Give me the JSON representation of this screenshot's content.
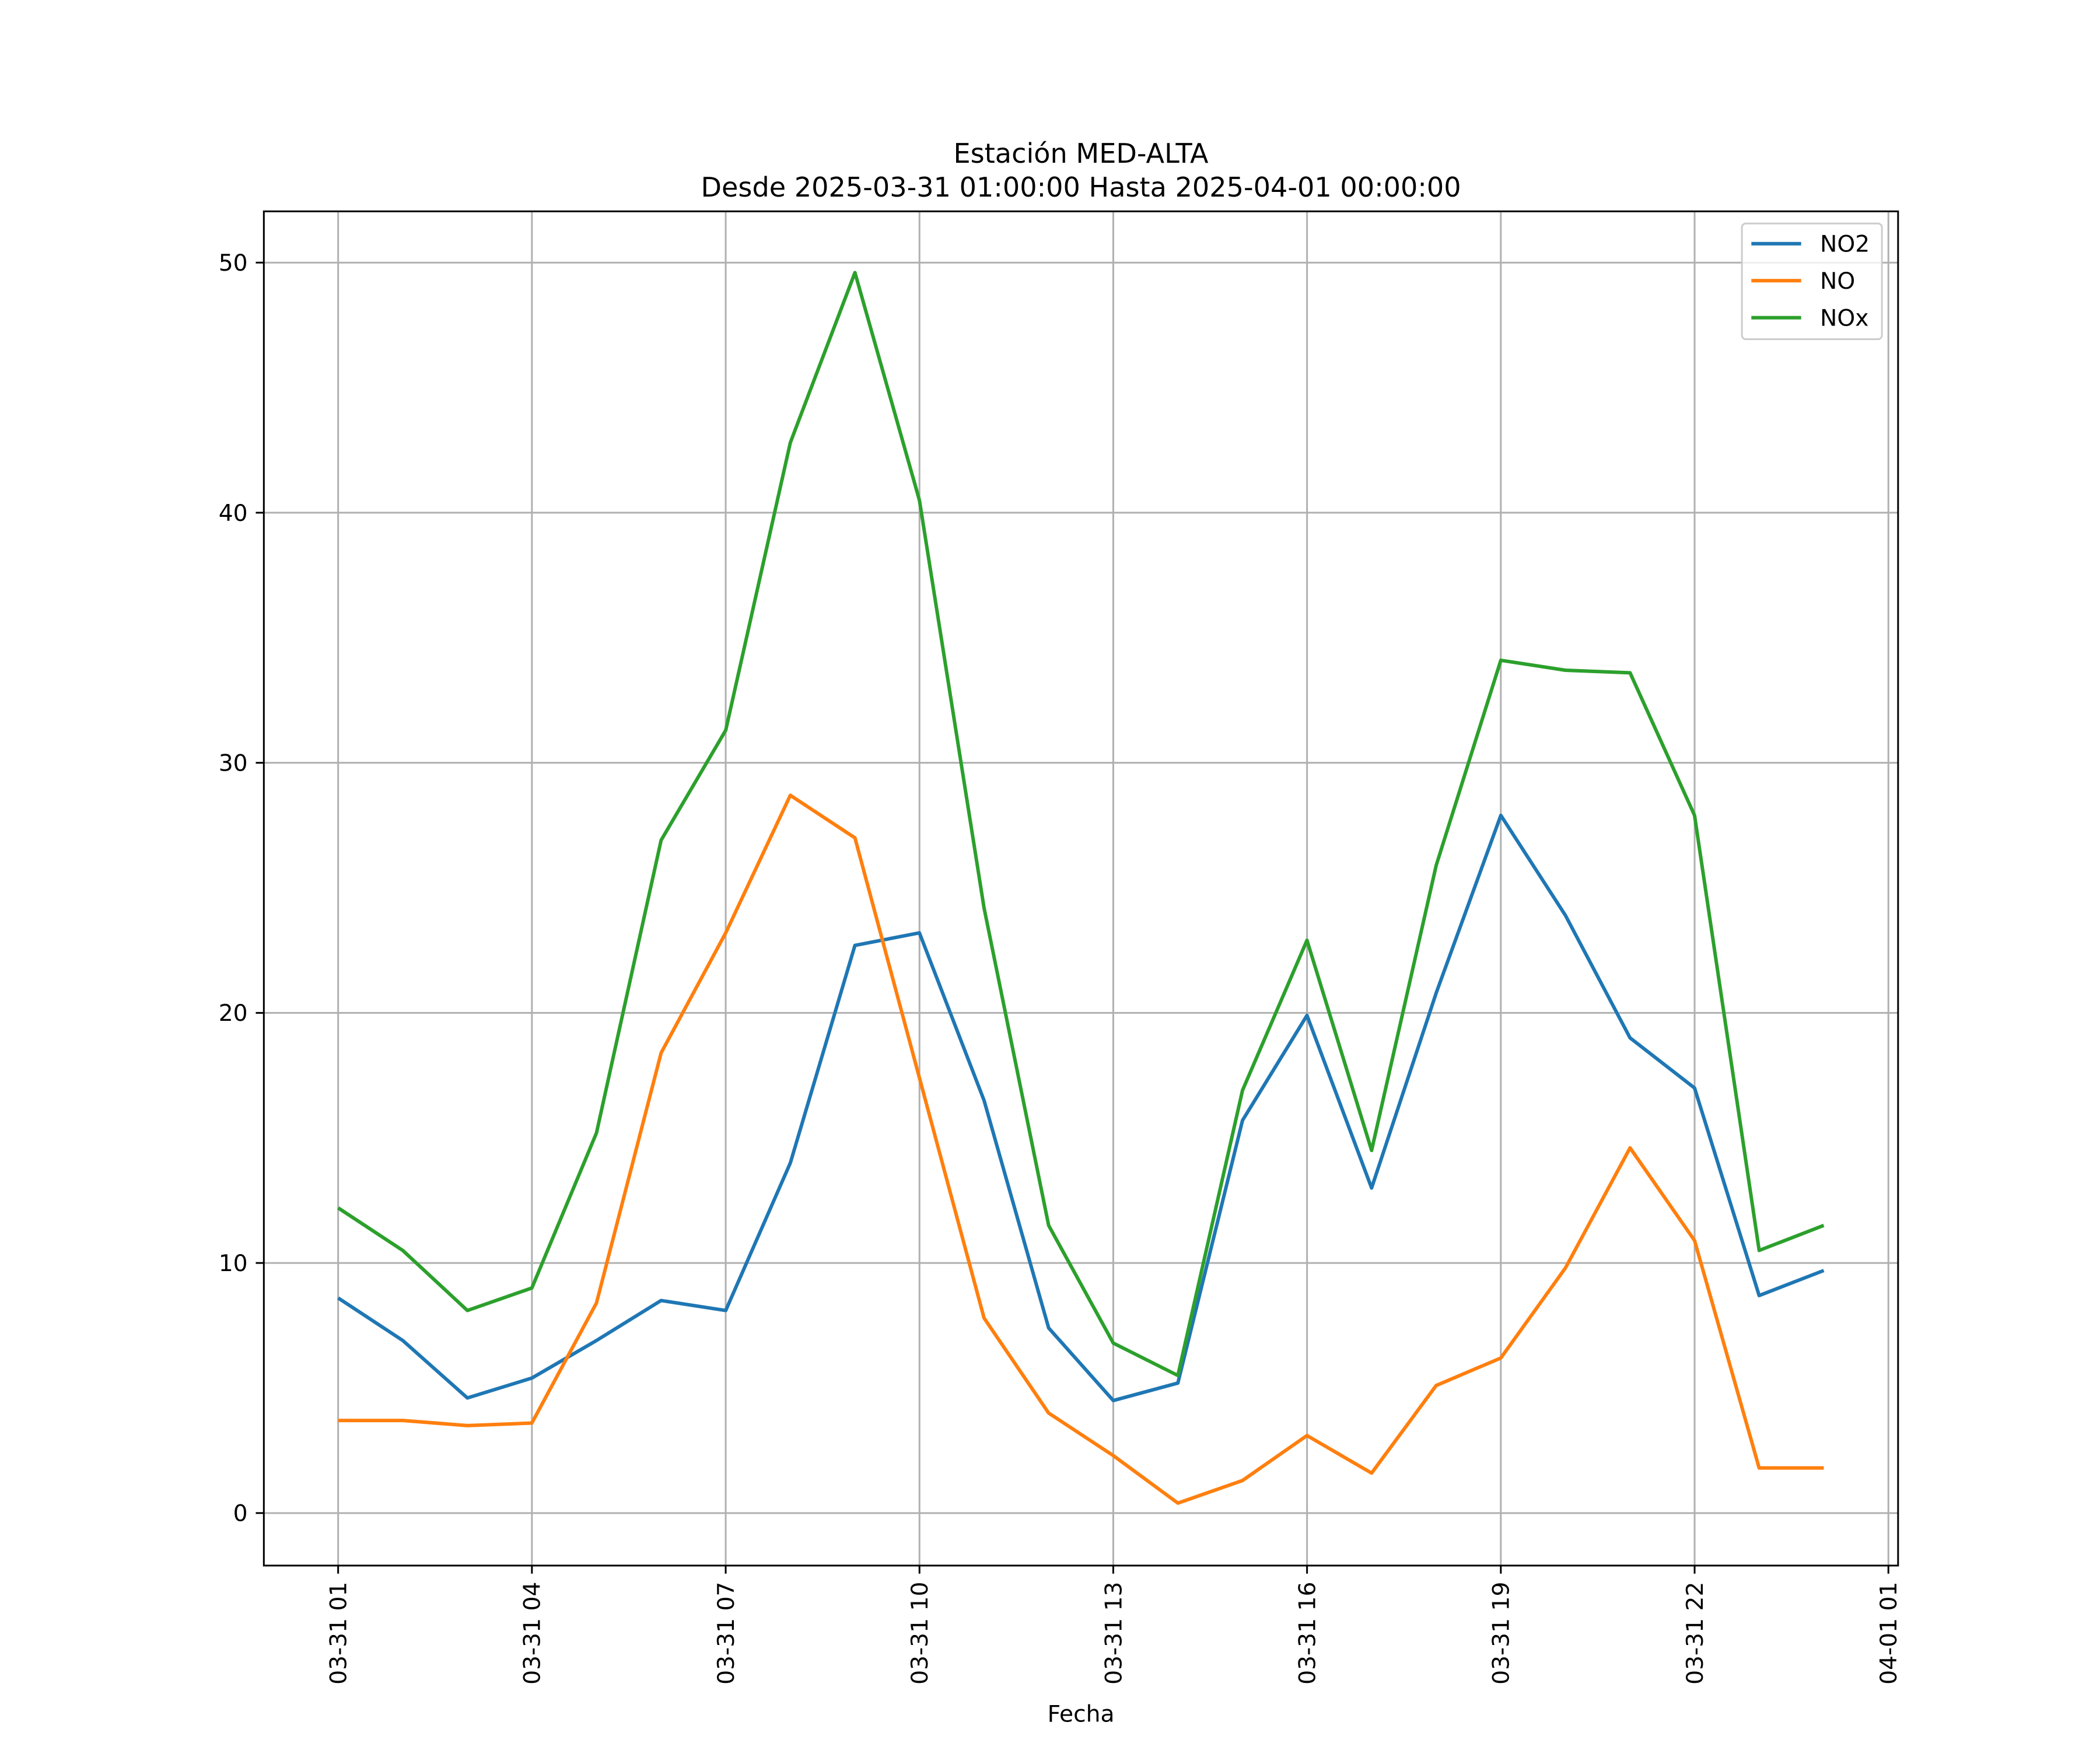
{
  "chart_data": {
    "type": "line",
    "title": [
      "Estación MED-ALTA",
      "Desde 2025-03-31 01:00:00 Hasta 2025-04-01 00:00:00"
    ],
    "xlabel": "Fecha",
    "x": [
      "03-31 01",
      "03-31 02",
      "03-31 03",
      "03-31 04",
      "03-31 05",
      "03-31 06",
      "03-31 07",
      "03-31 08",
      "03-31 09",
      "03-31 10",
      "03-31 11",
      "03-31 12",
      "03-31 13",
      "03-31 14",
      "03-31 15",
      "03-31 16",
      "03-31 17",
      "03-31 18",
      "03-31 19",
      "03-31 20",
      "03-31 21",
      "03-31 22",
      "03-31 23",
      "04-01 00"
    ],
    "xticks": [
      "03-31 01",
      "03-31 04",
      "03-31 07",
      "03-31 10",
      "03-31 13",
      "03-31 16",
      "03-31 19",
      "03-31 22",
      "04-01 01"
    ],
    "series": [
      {
        "name": "NO2",
        "color": "#1f77b4",
        "values": [
          8.6,
          6.9,
          4.6,
          5.4,
          6.9,
          8.5,
          8.1,
          14.0,
          22.7,
          23.2,
          16.5,
          7.4,
          4.5,
          5.2,
          15.7,
          19.9,
          13.0,
          20.8,
          27.9,
          23.9,
          19.0,
          17.0,
          8.7,
          9.7
        ]
      },
      {
        "name": "NO",
        "color": "#ff7f0e",
        "values": [
          3.7,
          3.7,
          3.5,
          3.6,
          8.4,
          18.4,
          23.2,
          28.7,
          27.0,
          17.4,
          7.8,
          4.0,
          2.3,
          0.4,
          1.3,
          3.1,
          1.6,
          5.1,
          6.2,
          9.8,
          14.6,
          10.9,
          1.8,
          1.8
        ]
      },
      {
        "name": "NOx",
        "color": "#2ca02c",
        "values": [
          12.2,
          10.5,
          8.1,
          9.0,
          15.2,
          26.9,
          31.3,
          42.8,
          49.6,
          40.5,
          24.2,
          11.5,
          6.8,
          5.5,
          16.9,
          22.9,
          14.5,
          25.9,
          34.1,
          33.7,
          33.6,
          27.9,
          10.5,
          11.5
        ]
      }
    ],
    "ylim": [
      -2.1,
      52.05
    ],
    "yticks": [
      0,
      10,
      20,
      30,
      40,
      50
    ],
    "grid": true,
    "legend": "upper right"
  }
}
